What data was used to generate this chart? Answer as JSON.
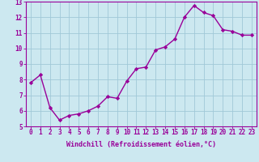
{
  "x": [
    0,
    1,
    2,
    3,
    4,
    5,
    6,
    7,
    8,
    9,
    10,
    11,
    12,
    13,
    14,
    15,
    16,
    17,
    18,
    19,
    20,
    21,
    22,
    23
  ],
  "y": [
    7.8,
    8.3,
    6.2,
    5.4,
    5.7,
    5.8,
    6.0,
    6.3,
    6.9,
    6.8,
    7.9,
    8.7,
    8.8,
    9.9,
    10.1,
    10.6,
    12.0,
    12.75,
    12.3,
    12.1,
    11.2,
    11.1,
    10.85,
    10.85
  ],
  "line_color": "#990099",
  "marker": "D",
  "marker_size": 2.2,
  "bg_color": "#cce8f0",
  "grid_color": "#a0c8d8",
  "xlabel": "Windchill (Refroidissement éolien,°C)",
  "ylim": [
    5,
    13
  ],
  "yticks": [
    5,
    6,
    7,
    8,
    9,
    10,
    11,
    12,
    13
  ],
  "xtick_labels": [
    "0",
    "1",
    "2",
    "3",
    "4",
    "5",
    "6",
    "7",
    "8",
    "9",
    "10",
    "11",
    "12",
    "13",
    "14",
    "15",
    "16",
    "17",
    "18",
    "19",
    "20",
    "21",
    "22",
    "23"
  ],
  "tick_fontsize": 5.5,
  "label_fontsize": 6.0,
  "line_width": 1.0
}
